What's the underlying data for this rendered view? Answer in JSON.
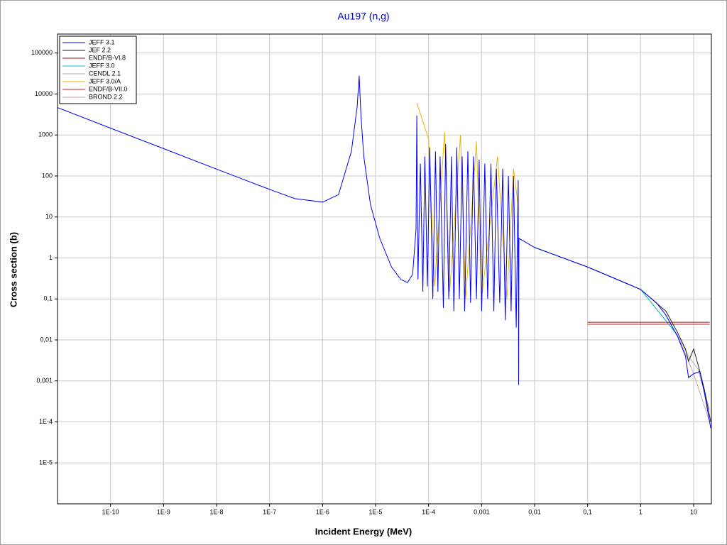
{
  "chart_data": {
    "type": "line",
    "title": "Au197 (n,g)",
    "xlabel": "Incident Energy (MeV)",
    "ylabel": "Cross section (b)",
    "xscale": "log",
    "yscale": "log",
    "grid": true,
    "legend": "upper left",
    "xlim": [
      1e-11,
      21.6
    ],
    "ylim": [
      1e-06,
      290000
    ],
    "xticks": [
      {
        "value": 1e-10,
        "label": "1E-10"
      },
      {
        "value": 1e-09,
        "label": "1E-9"
      },
      {
        "value": 1e-08,
        "label": "1E-8"
      },
      {
        "value": 1e-07,
        "label": "1E-7"
      },
      {
        "value": 1e-06,
        "label": "1E-6"
      },
      {
        "value": 1e-05,
        "label": "1E-5"
      },
      {
        "value": 0.0001,
        "label": "1E-4"
      },
      {
        "value": 0.001,
        "label": "0,001"
      },
      {
        "value": 0.01,
        "label": "0,01"
      },
      {
        "value": 0.1,
        "label": "0,1"
      },
      1,
      10
    ],
    "yticks": [
      {
        "value": 1e-05,
        "label": "1E-5"
      },
      {
        "value": 0.0001,
        "label": "1E-4"
      },
      {
        "value": 0.001,
        "label": "0,001"
      },
      {
        "value": 0.01,
        "label": "0,01"
      },
      {
        "value": 0.1,
        "label": "0,1"
      },
      1,
      10,
      100,
      1000,
      10000,
      100000
    ],
    "series": [
      {
        "name": "JEFF 3.1",
        "color": "#0000ff",
        "x": [
          1e-11,
          1e-10,
          1e-09,
          1e-08,
          1e-07,
          3e-07,
          1e-06,
          2e-06,
          3.5e-06,
          4.5e-06,
          4.9e-06,
          5.3e-06,
          6e-06,
          8e-06,
          1.2e-05,
          2e-05,
          3e-05,
          4e-05,
          5e-05,
          5.8e-05,
          6e-05,
          6.3e-05,
          7e-05,
          7.8e-05,
          8.5e-05,
          9.5e-05,
          0.000105,
          0.00012,
          0.000135,
          0.00015,
          0.000165,
          0.00019,
          0.00021,
          0.00024,
          0.00027,
          0.0003,
          0.00034,
          0.00038,
          0.00043,
          0.00048,
          0.00055,
          0.00062,
          0.0007,
          0.0008,
          0.0009,
          0.001,
          0.00115,
          0.0013,
          0.0015,
          0.0017,
          0.0019,
          0.0022,
          0.0025,
          0.0028,
          0.0032,
          0.0036,
          0.004,
          0.0045,
          0.0049,
          0.005,
          0.00505,
          0.01,
          0.1,
          0.5,
          1,
          2,
          3,
          5,
          7,
          8,
          10,
          13,
          16,
          21
        ],
        "values": [
          4660,
          1470,
          465,
          147,
          47,
          28,
          23,
          35,
          400,
          5000,
          28000,
          3000,
          300,
          20,
          3,
          0.6,
          0.3,
          0.25,
          0.4,
          5,
          3000,
          0.3,
          200,
          0.15,
          300,
          0.2,
          500,
          0.1,
          400,
          0.15,
          300,
          0.06,
          600,
          0.1,
          300,
          0.05,
          500,
          0.1,
          300,
          0.05,
          400,
          0.08,
          300,
          0.1,
          250,
          0.05,
          200,
          0.1,
          200,
          0.05,
          150,
          0.08,
          150,
          0.03,
          100,
          0.05,
          100,
          0.02,
          80,
          0.0008,
          3,
          1.8,
          0.6,
          0.25,
          0.17,
          0.08,
          0.04,
          0.012,
          0.004,
          0.0012,
          0.0015,
          0.0017,
          0.0005,
          7e-05
        ]
      },
      {
        "name": "JEF 2.2",
        "color": "#202020",
        "x": [
          0.01,
          0.1,
          1,
          3,
          5,
          7,
          8,
          10,
          13,
          16,
          21
        ],
        "values": [
          1.8,
          0.6,
          0.17,
          0.05,
          0.015,
          0.006,
          0.003,
          0.006,
          0.0018,
          0.0006,
          0.0001
        ]
      },
      {
        "name": "ENDF/B-VI.8",
        "color": "#8b1a1a",
        "x": [
          0.1,
          20
        ],
        "values": [
          0.027,
          0.027
        ]
      },
      {
        "name": "JEFF 3.0",
        "color": "#00cccc",
        "x": [
          0.01,
          0.1,
          1,
          5
        ],
        "values": [
          1.8,
          0.6,
          0.17,
          0.013
        ]
      },
      {
        "name": "CENDL 2.1",
        "color": "#b0b0b0",
        "x": [
          1,
          5,
          8,
          12,
          20
        ],
        "values": [
          0.17,
          0.013,
          0.004,
          0.002,
          0.0002
        ]
      },
      {
        "name": "JEFF 3.0/A",
        "color": "#f0b400",
        "x": [
          6e-05,
          0.0001,
          0.00013,
          0.0002,
          0.00025,
          0.0004,
          0.0005,
          0.0008,
          0.001,
          0.002,
          0.003,
          0.004,
          0.005
        ],
        "values": [
          6000,
          800,
          0.2,
          1200,
          0.15,
          1000,
          0.1,
          700,
          0.1,
          300,
          0.1,
          150,
          15
        ]
      },
      {
        "name": "ENDF/B-VII.0",
        "color": "#d02020",
        "x": [
          0.1,
          20
        ],
        "values": [
          0.024,
          0.024
        ]
      },
      {
        "name": "BROND 2.2",
        "color": "#c8a0b8",
        "x": [
          0.1,
          1,
          5,
          10,
          20
        ],
        "values": [
          0.6,
          0.17,
          0.013,
          0.0015,
          0.0001
        ]
      }
    ]
  }
}
